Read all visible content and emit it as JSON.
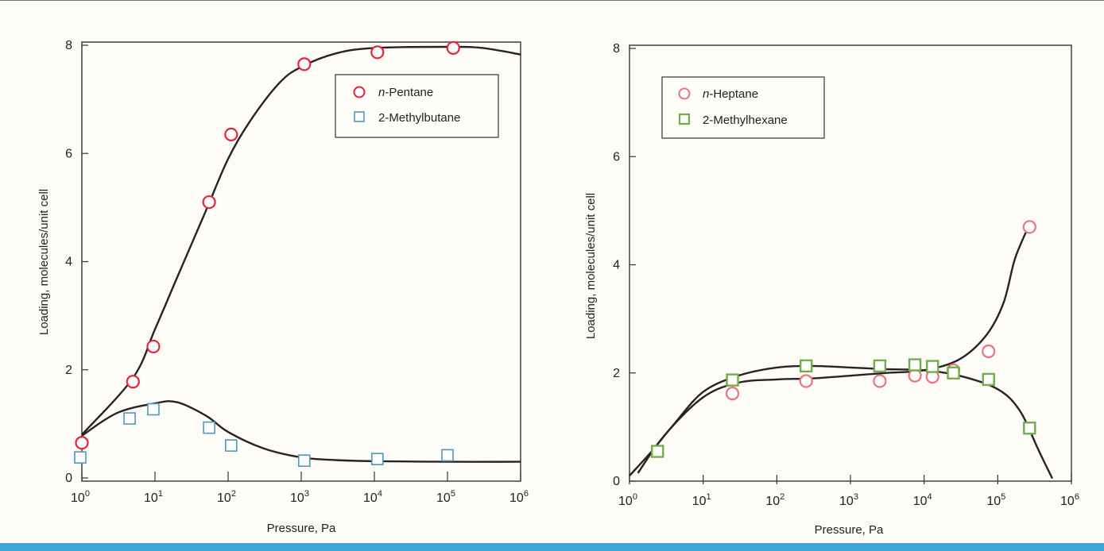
{
  "chart_data": [
    {
      "type": "scatter",
      "xlabel": "Pressure, Pa",
      "ylabel": "Loading, molecules/unit cell",
      "xscale": "log",
      "xlim": [
        1,
        1000000
      ],
      "ylim": [
        0,
        8
      ],
      "x_ticks": [
        {
          "base": "10",
          "exp": "0"
        },
        {
          "base": "10",
          "exp": "1"
        },
        {
          "base": "10",
          "exp": "2"
        },
        {
          "base": "10",
          "exp": "3"
        },
        {
          "base": "10",
          "exp": "4"
        },
        {
          "base": "10",
          "exp": "5"
        },
        {
          "base": "10",
          "exp": "6"
        }
      ],
      "y_ticks": [
        "0",
        "2",
        "4",
        "6",
        "8"
      ],
      "legend_position": "top-right",
      "series": [
        {
          "name_prefix": "n",
          "name_rest": "-Pentane",
          "marker": "circle",
          "color": "#e8243c",
          "points": [
            [
              1,
              0.65
            ],
            [
              5,
              1.78
            ],
            [
              9.5,
              2.43
            ],
            [
              55,
              5.1
            ],
            [
              110,
              6.35
            ],
            [
              1100,
              7.65
            ],
            [
              11000,
              7.87
            ],
            [
              120000,
              7.95
            ]
          ],
          "fit_curve": [
            [
              1,
              0.8
            ],
            [
              5,
              1.85
            ],
            [
              10,
              2.75
            ],
            [
              20,
              3.7
            ],
            [
              50,
              4.95
            ],
            [
              100,
              5.9
            ],
            [
              200,
              6.6
            ],
            [
              500,
              7.3
            ],
            [
              1000,
              7.6
            ],
            [
              3000,
              7.85
            ],
            [
              10000,
              7.95
            ],
            [
              100000,
              7.97
            ],
            [
              300000,
              7.95
            ],
            [
              1000000,
              7.83
            ]
          ]
        },
        {
          "name_prefix": "",
          "name_rest": "2-Methylbutane",
          "marker": "square",
          "color": "#4a9bb8",
          "points": [
            [
              0.95,
              0.38
            ],
            [
              4.5,
              1.1
            ],
            [
              9.5,
              1.27
            ],
            [
              55,
              0.93
            ],
            [
              110,
              0.6
            ],
            [
              1100,
              0.32
            ],
            [
              11000,
              0.35
            ],
            [
              100000,
              0.42
            ]
          ],
          "fit_curve": [
            [
              1,
              0.78
            ],
            [
              3,
              1.2
            ],
            [
              10,
              1.38
            ],
            [
              20,
              1.4
            ],
            [
              50,
              1.15
            ],
            [
              100,
              0.85
            ],
            [
              300,
              0.55
            ],
            [
              1000,
              0.38
            ],
            [
              3000,
              0.33
            ],
            [
              10000,
              0.31
            ],
            [
              100000,
              0.3
            ],
            [
              1000000,
              0.3
            ]
          ]
        }
      ]
    },
    {
      "type": "scatter",
      "xlabel": "Pressure, Pa",
      "ylabel": "Loading, molecules/unit cell",
      "xscale": "log",
      "xlim": [
        1,
        1000000
      ],
      "ylim": [
        0,
        8
      ],
      "x_ticks": [
        {
          "base": "10",
          "exp": "0"
        },
        {
          "base": "10",
          "exp": "1"
        },
        {
          "base": "10",
          "exp": "2"
        },
        {
          "base": "10",
          "exp": "3"
        },
        {
          "base": "10",
          "exp": "4"
        },
        {
          "base": "10",
          "exp": "5"
        },
        {
          "base": "10",
          "exp": "6"
        }
      ],
      "y_ticks": [
        "0",
        "2",
        "4",
        "6",
        "8"
      ],
      "legend_position": "top-left",
      "series": [
        {
          "name_prefix": "n",
          "name_rest": "-Heptane",
          "marker": "circle",
          "color": "#f07080",
          "points": [
            [
              25,
              1.62
            ],
            [
              250,
              1.85
            ],
            [
              2500,
              1.85
            ],
            [
              7500,
              1.95
            ],
            [
              13000,
              1.93
            ],
            [
              25000,
              2.05
            ],
            [
              75000,
              2.4
            ],
            [
              270000,
              4.7
            ]
          ],
          "fit_curve": [
            [
              1.3,
              0.15
            ],
            [
              3,
              0.85
            ],
            [
              10,
              1.55
            ],
            [
              30,
              1.82
            ],
            [
              100,
              1.88
            ],
            [
              300,
              1.9
            ],
            [
              1000,
              1.95
            ],
            [
              3000,
              2.0
            ],
            [
              10000,
              2.05
            ],
            [
              30000,
              2.25
            ],
            [
              70000,
              2.7
            ],
            [
              120000,
              3.3
            ],
            [
              170000,
              4.1
            ],
            [
              250000,
              4.65
            ]
          ]
        },
        {
          "name_prefix": "",
          "name_rest": "2-Methylhexane",
          "marker": "square",
          "color": "#6db04a",
          "points": [
            [
              2.4,
              0.55
            ],
            [
              25,
              1.87
            ],
            [
              250,
              2.13
            ],
            [
              2500,
              2.13
            ],
            [
              7500,
              2.15
            ],
            [
              13000,
              2.12
            ],
            [
              25000,
              2.0
            ],
            [
              75000,
              1.88
            ],
            [
              270000,
              0.98
            ]
          ],
          "fit_curve": [
            [
              1,
              0.1
            ],
            [
              2,
              0.55
            ],
            [
              4,
              1.05
            ],
            [
              10,
              1.65
            ],
            [
              30,
              1.95
            ],
            [
              100,
              2.1
            ],
            [
              300,
              2.13
            ],
            [
              1000,
              2.1
            ],
            [
              3000,
              2.07
            ],
            [
              10000,
              2.05
            ],
            [
              30000,
              1.95
            ],
            [
              100000,
              1.7
            ],
            [
              200000,
              1.3
            ],
            [
              350000,
              0.6
            ],
            [
              550000,
              0.05
            ]
          ]
        }
      ]
    }
  ]
}
